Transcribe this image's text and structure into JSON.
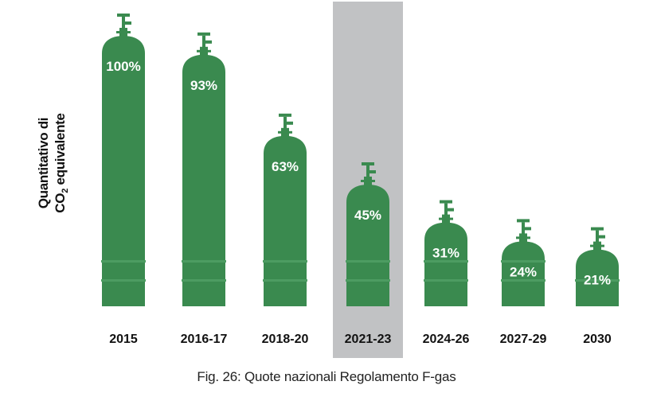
{
  "chart_data": {
    "type": "bar",
    "categories": [
      "2015",
      "2016-17",
      "2018-20",
      "2021-23",
      "2024-26",
      "2027-29",
      "2030"
    ],
    "values": [
      100,
      93,
      63,
      45,
      31,
      24,
      21
    ],
    "value_labels": [
      "100%",
      "93%",
      "63%",
      "45%",
      "31%",
      "24%",
      "21%"
    ],
    "highlighted_category": "2021-23",
    "ylabel_line1": "Quantitativo di",
    "ylabel_line2_pre": "CO",
    "ylabel_line2_sub": "2",
    "ylabel_line2_post": " equivalente",
    "ylim": [
      0,
      100
    ],
    "grid": false,
    "legend": "none"
  },
  "caption": "Fig. 26: Quote nazionali Regolamento F-gas",
  "colors": {
    "bar": "#3a8a4f",
    "bar_band": "#4d9c62",
    "highlight": "#c1c2c4",
    "value_text": "#ffffff",
    "label_text": "#111111"
  }
}
